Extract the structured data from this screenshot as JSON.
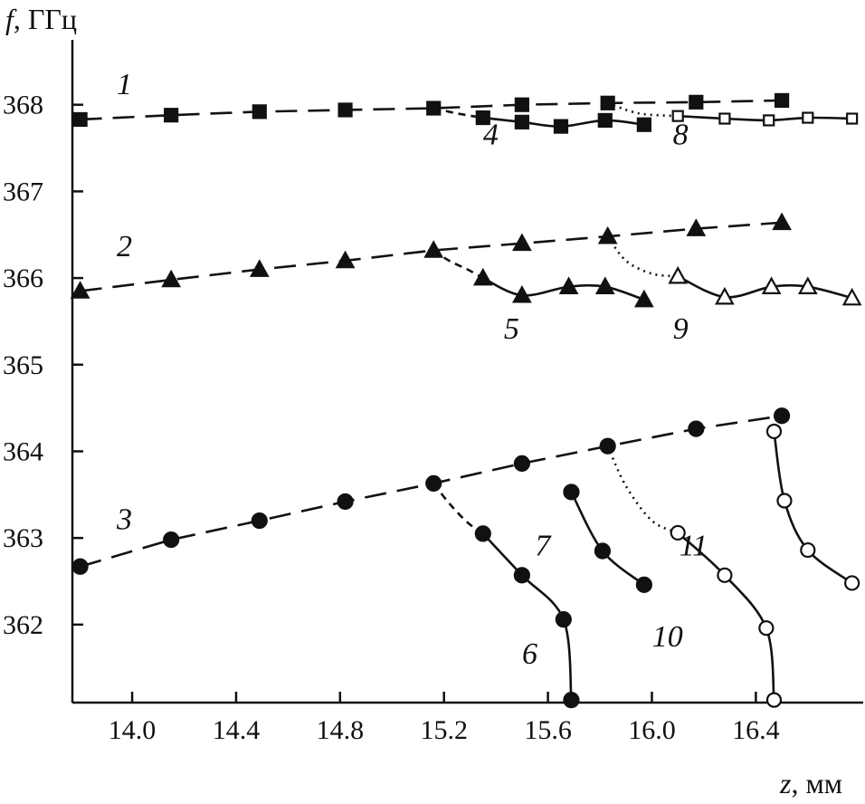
{
  "chart_data": {
    "type": "line",
    "title": "",
    "xlabel_var": "z",
    "xlabel_unit": ", мм",
    "ylabel_var": "f",
    "ylabel_unit": ", ГГц",
    "xlim": [
      13.77,
      16.82
    ],
    "ylim": [
      361.1,
      369.0
    ],
    "xticks": [
      14.0,
      14.4,
      14.8,
      15.2,
      15.6,
      16.0,
      16.4
    ],
    "xtick_labels": [
      "14.0",
      "14.4",
      "14.8",
      "15.2",
      "15.6",
      "16.0",
      "16.4"
    ],
    "yticks": [
      362,
      363,
      364,
      365,
      366,
      367,
      368
    ],
    "ytick_labels": [
      "362",
      "363",
      "364",
      "365",
      "366",
      "367",
      "368"
    ],
    "grid": false,
    "series": [
      {
        "label": "1",
        "line": "long-dash",
        "marker": "square-filled",
        "x": [
          13.8,
          14.15,
          14.49,
          14.82,
          15.16,
          15.5,
          15.83,
          16.17,
          16.5
        ],
        "y": [
          367.83,
          367.88,
          367.92,
          367.94,
          367.96,
          368.0,
          368.02,
          368.03,
          368.05
        ]
      },
      {
        "label": "2",
        "line": "long-dash",
        "marker": "triangle-filled",
        "x": [
          13.8,
          14.15,
          14.49,
          14.82,
          15.16,
          15.5,
          15.83,
          16.17,
          16.5
        ],
        "y": [
          365.85,
          365.98,
          366.1,
          366.2,
          366.32,
          366.4,
          366.48,
          366.57,
          366.64
        ]
      },
      {
        "label": "3",
        "line": "long-dash",
        "marker": "circle-filled",
        "x": [
          13.8,
          14.15,
          14.49,
          14.82,
          15.16,
          15.5,
          15.83,
          16.17,
          16.5
        ],
        "y": [
          362.67,
          362.98,
          363.2,
          363.42,
          363.63,
          363.86,
          364.06,
          364.26,
          364.41
        ]
      },
      {
        "label": "4",
        "line": "solid",
        "marker": "square-filled",
        "x": [
          15.35,
          15.5,
          15.65,
          15.82,
          15.97
        ],
        "y": [
          367.85,
          367.8,
          367.75,
          367.82,
          367.77
        ]
      },
      {
        "label": "5",
        "line": "solid",
        "marker": "triangle-filled",
        "x": [
          15.35,
          15.5,
          15.68,
          15.82,
          15.97
        ],
        "y": [
          366.0,
          365.8,
          365.9,
          365.9,
          365.75
        ]
      },
      {
        "label": "6",
        "line": "solid",
        "marker": "circle-filled",
        "x": [
          15.35,
          15.5,
          15.66,
          15.69
        ],
        "y": [
          363.05,
          362.57,
          362.06,
          361.13
        ]
      },
      {
        "label": "7",
        "line": "solid",
        "marker": "circle-filled",
        "x": [
          15.69,
          15.81,
          15.97
        ],
        "y": [
          363.53,
          362.85,
          362.46
        ]
      },
      {
        "label": "8",
        "line": "solid",
        "marker": "square-open",
        "x": [
          16.1,
          16.28,
          16.45,
          16.6,
          16.77
        ],
        "y": [
          367.87,
          367.84,
          367.82,
          367.85,
          367.84
        ]
      },
      {
        "label": "9",
        "line": "solid",
        "marker": "triangle-open",
        "x": [
          16.1,
          16.28,
          16.46,
          16.6,
          16.77
        ],
        "y": [
          366.02,
          365.78,
          365.9,
          365.9,
          365.77
        ]
      },
      {
        "label": "10",
        "line": "solid",
        "marker": "circle-open",
        "x": [
          16.1,
          16.28,
          16.44,
          16.47
        ],
        "y": [
          363.06,
          362.57,
          361.96,
          361.13
        ]
      },
      {
        "label": "11",
        "line": "solid",
        "marker": "circle-open",
        "x": [
          16.47,
          16.51,
          16.6,
          16.77
        ],
        "y": [
          364.23,
          363.43,
          362.86,
          362.48
        ]
      }
    ],
    "connectors": [
      {
        "style": "short-dash",
        "x": [
          15.16,
          15.22,
          15.29,
          15.35
        ],
        "y": [
          363.63,
          363.4,
          363.18,
          363.05
        ]
      },
      {
        "style": "short-dash",
        "x": [
          15.16,
          15.22,
          15.29,
          15.35
        ],
        "y": [
          366.32,
          366.2,
          366.1,
          366.0
        ]
      },
      {
        "style": "short-dash",
        "x": [
          15.16,
          15.25,
          15.35
        ],
        "y": [
          367.96,
          367.9,
          367.85
        ]
      },
      {
        "style": "dotted",
        "x": [
          15.83,
          15.9,
          16.0,
          16.1
        ],
        "y": [
          364.06,
          363.6,
          363.2,
          363.06
        ]
      },
      {
        "style": "dotted",
        "x": [
          15.83,
          15.9,
          16.0,
          16.1
        ],
        "y": [
          366.48,
          366.2,
          366.05,
          366.02
        ]
      },
      {
        "style": "dotted",
        "x": [
          15.83,
          15.95,
          16.1
        ],
        "y": [
          368.02,
          367.9,
          367.87
        ]
      }
    ],
    "curve_labels": [
      {
        "text": "1",
        "x": 13.97,
        "y": 368.12
      },
      {
        "text": "2",
        "x": 13.97,
        "y": 366.25
      },
      {
        "text": "3",
        "x": 13.97,
        "y": 363.1
      },
      {
        "text": "4",
        "x": 15.38,
        "y": 367.54
      },
      {
        "text": "5",
        "x": 15.46,
        "y": 365.3
      },
      {
        "text": "6",
        "x": 15.53,
        "y": 361.55
      },
      {
        "text": "7",
        "x": 15.58,
        "y": 362.8
      },
      {
        "text": "8",
        "x": 16.11,
        "y": 367.54
      },
      {
        "text": "9",
        "x": 16.11,
        "y": 365.3
      },
      {
        "text": "10",
        "x": 16.06,
        "y": 361.75
      },
      {
        "text": "11",
        "x": 16.16,
        "y": 362.8
      }
    ]
  }
}
